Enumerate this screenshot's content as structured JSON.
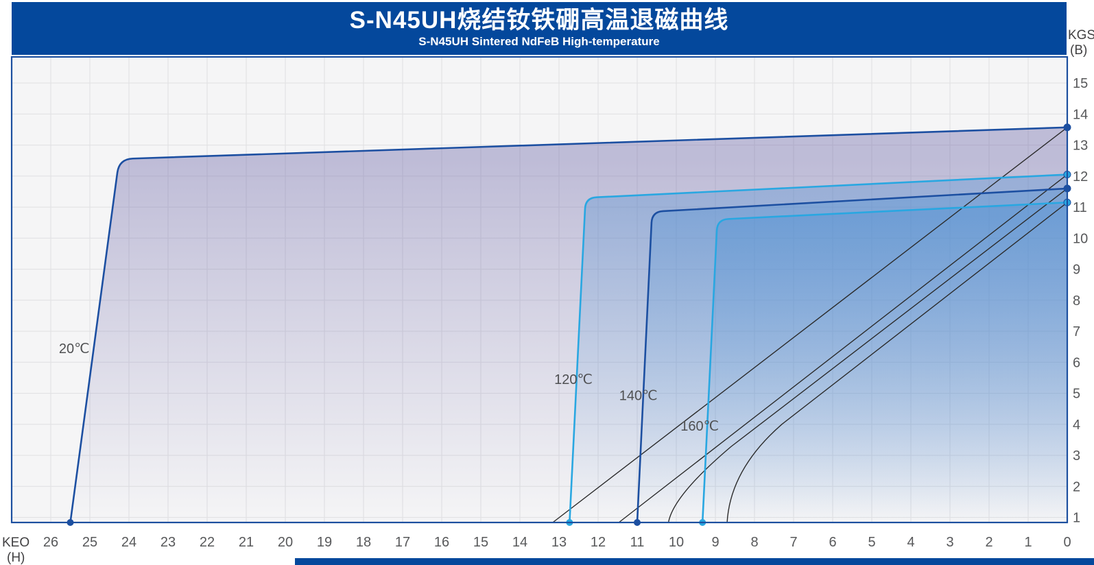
{
  "colors": {
    "brand_blue": "#04489C",
    "plot_background": "#F5F5F6",
    "grid_line": "#E2E2E4",
    "plot_border": "#1C4F9F",
    "dark_curve": "#1C4FA1",
    "light_curve": "#29A7E1",
    "normal_line": "#2B2B2B",
    "purple_fill": "#6C66A8",
    "blue_fill": "#468CD2"
  },
  "header": {
    "title": "S-N45UH烧结钕铁硼高温退磁曲线",
    "subtitle": "S-N45UH Sintered NdFeB High-temperature"
  },
  "axes": {
    "x_unit_line1": "KEO",
    "x_unit_line2": "(H)",
    "y_unit_line1": "KGS",
    "y_unit_line2": "(B)"
  },
  "chart_data": {
    "type": "line",
    "title": "S-N45UH烧结钕铁硼高温退磁曲线",
    "subtitle": "S-N45UH Sintered NdFeB High-temperature",
    "grid": true,
    "x_axis": {
      "label": "KEO (H)",
      "reversed": true,
      "range": [
        0,
        27
      ],
      "ticks": [
        26,
        25,
        24,
        23,
        22,
        21,
        20,
        19,
        18,
        17,
        16,
        15,
        14,
        13,
        12,
        11,
        10,
        9,
        8,
        7,
        6,
        5,
        4,
        3,
        2,
        1,
        0
      ]
    },
    "y_axis": {
      "label": "KGS (B)",
      "range": [
        0.84,
        15.9
      ],
      "ticks": [
        15,
        14,
        13,
        12,
        11,
        10,
        9,
        8,
        7,
        6,
        5,
        4,
        3,
        2,
        1
      ]
    },
    "series": [
      {
        "name": "20C intrinsic",
        "temperature": "20℃",
        "kind": "intrinsic",
        "color": "#1C4FA1",
        "Hcj": 25.5,
        "knee": {
          "H": 24.25,
          "B": 12.55
        },
        "Br": 13.57,
        "fill": "purple",
        "corner_radius": 20
      },
      {
        "name": "120C intrinsic",
        "temperature": "120℃",
        "kind": "intrinsic",
        "color": "#29A7E1",
        "Hcj": 12.73,
        "knee": {
          "H": 12.32,
          "B": 11.3
        },
        "Br": 12.05,
        "fill": "blue",
        "corner_radius": 16
      },
      {
        "name": "140C intrinsic",
        "temperature": "140℃",
        "kind": "intrinsic",
        "color": "#1C4FA1",
        "Hcj": 11.0,
        "knee": {
          "H": 10.62,
          "B": 10.85
        },
        "Br": 11.6,
        "fill": "blue",
        "corner_radius": 16
      },
      {
        "name": "160C intrinsic",
        "temperature": "160℃",
        "kind": "intrinsic",
        "color": "#29A7E1",
        "Hcj": 9.33,
        "knee": {
          "H": 8.95,
          "B": 10.6
        },
        "Br": 11.15,
        "fill": "blue",
        "corner_radius": 16
      },
      {
        "name": "20C normal",
        "temperature": "20℃",
        "kind": "normal-line",
        "color": "#2B2B2B",
        "Hcb": 13.16,
        "Br": 13.57
      },
      {
        "name": "120C normal",
        "temperature": "120℃",
        "kind": "normal-line",
        "color": "#2B2B2B",
        "Hcb": 11.47,
        "Br": 12.05
      },
      {
        "name": "140C normal",
        "temperature": "140℃",
        "kind": "normal-bent",
        "color": "#2B2B2B",
        "Hcb": 10.2,
        "Br": 11.6,
        "bend_start": {
          "H": 8.6,
          "B": 3.28
        },
        "ctrl": {
          "H": 10.08,
          "B": 1.7
        }
      },
      {
        "name": "160C normal",
        "temperature": "160℃",
        "kind": "normal-bent",
        "color": "#2B2B2B",
        "Hcb": 8.7,
        "Br": 11.15,
        "bend_start": {
          "H": 7.3,
          "B": 4.0
        },
        "ctrl": {
          "H": 8.62,
          "B": 2.55
        }
      }
    ],
    "temperature_labels": [
      {
        "text": "20℃",
        "H": 25.4,
        "B": 6.45
      },
      {
        "text": "120℃",
        "H": 12.63,
        "B": 5.45
      },
      {
        "text": "140℃",
        "H": 10.97,
        "B": 4.94
      },
      {
        "text": "160℃",
        "H": 9.4,
        "B": 3.95
      }
    ]
  }
}
